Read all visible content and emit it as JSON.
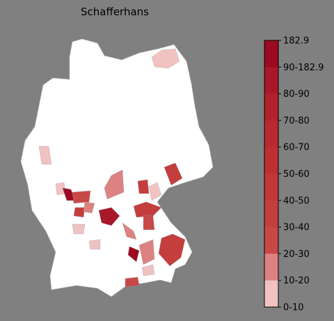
{
  "title": "Schafferhans",
  "colorbar": {
    "labels": [
      "182.9",
      "90-182.9",
      "80-90",
      "70-80",
      "60-70",
      "50-60",
      "40-50",
      "30-40",
      "20-30",
      "10-20",
      "0-10"
    ],
    "colors": [
      "#9c0a22",
      "#a81828",
      "#b0222c",
      "#b82a30",
      "#bc3034",
      "#c03838",
      "#c43e3e",
      "#c84848",
      "#dc8282",
      "#f0c2c2"
    ]
  }
}
